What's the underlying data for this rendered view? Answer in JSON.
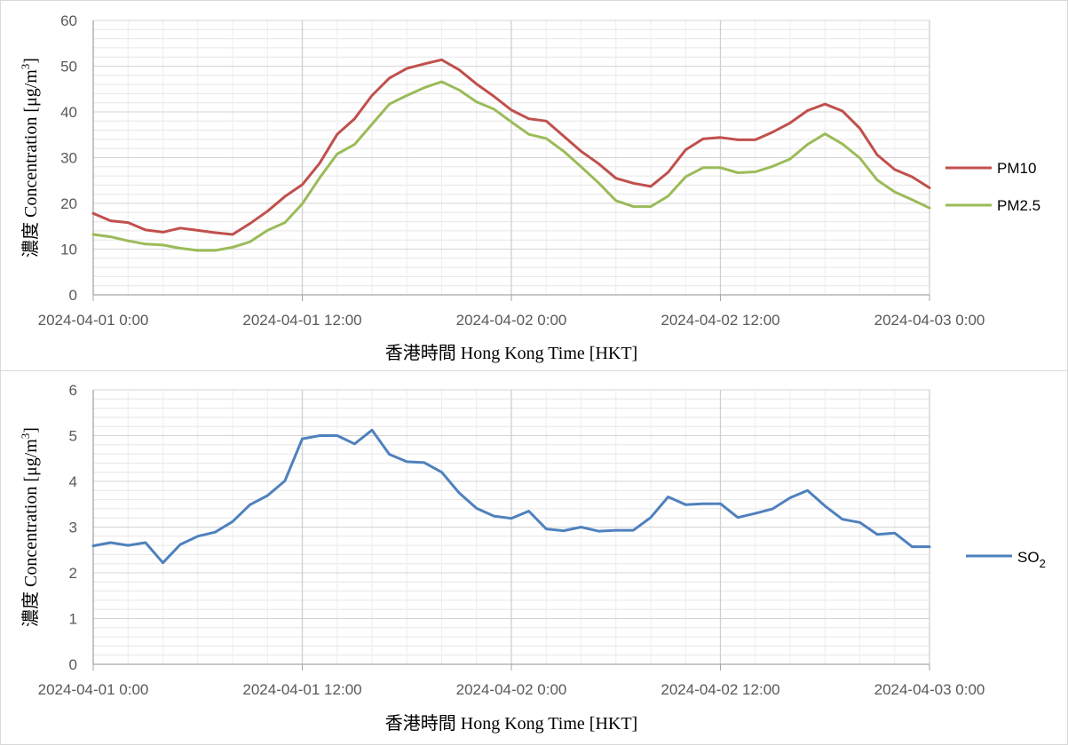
{
  "chart_data": [
    {
      "type": "line",
      "ylabel": "濃度 Concentration [μg/m³]",
      "ylabel_main": "濃度 Concentration [μg/m",
      "ylabel_sup": "3",
      "ylabel_end": "]",
      "xlabel": "香港時間 Hong Kong Time [HKT]",
      "ylim": [
        0,
        60
      ],
      "ytick_step": 10,
      "yticks": [
        "0",
        "10",
        "20",
        "30",
        "40",
        "50",
        "60"
      ],
      "x_range": [
        "2024-04-01 0:00",
        "2024-04-03 0:00"
      ],
      "xticks": [
        "2024-04-01 0:00",
        "2024-04-01 12:00",
        "2024-04-02 0:00",
        "2024-04-02 12:00",
        "2024-04-03 0:00"
      ],
      "x_interval_hours": 1,
      "grid": true,
      "legend_position": "right",
      "series": [
        {
          "name": "PM10",
          "color": "#c0504d",
          "values": [
            17.8,
            16.2,
            15.8,
            14.2,
            13.7,
            14.6,
            14.1,
            13.6,
            13.2,
            15.6,
            18.3,
            21.5,
            24.1,
            28.8,
            35.1,
            38.5,
            43.6,
            47.4,
            49.5,
            50.5,
            51.4,
            49.2,
            46.1,
            43.4,
            40.4,
            38.5,
            38.0,
            34.7,
            31.4,
            28.7,
            25.5,
            24.4,
            23.7,
            26.8,
            31.7,
            34.1,
            34.4,
            33.9,
            33.9,
            35.6,
            37.6,
            40.3,
            41.7,
            40.2,
            36.4,
            30.6,
            27.4,
            25.8,
            23.4
          ]
        },
        {
          "name": "PM2.5",
          "color": "#9bbb59",
          "values": [
            13.2,
            12.7,
            11.8,
            11.1,
            10.9,
            10.2,
            9.7,
            9.7,
            10.4,
            11.6,
            14.1,
            15.8,
            19.9,
            25.6,
            30.8,
            32.9,
            37.3,
            41.7,
            43.6,
            45.3,
            46.6,
            44.8,
            42.2,
            40.6,
            37.8,
            35.1,
            34.2,
            31.4,
            28.0,
            24.5,
            20.6,
            19.3,
            19.3,
            21.6,
            25.8,
            27.8,
            27.8,
            26.7,
            26.9,
            28.1,
            29.7,
            32.9,
            35.2,
            33.0,
            29.9,
            25.1,
            22.5,
            20.8,
            19.0
          ]
        }
      ]
    },
    {
      "type": "line",
      "ylabel": "濃度 Concentration [μg/m³]",
      "ylabel_main": "濃度 Concentration [μg/m",
      "ylabel_sup": "3",
      "ylabel_end": "]",
      "xlabel": "香港時間 Hong Kong Time [HKT]",
      "ylim": [
        0,
        6
      ],
      "ytick_step": 1,
      "yticks": [
        "0",
        "1",
        "2",
        "3",
        "4",
        "5",
        "6"
      ],
      "x_range": [
        "2024-04-01 0:00",
        "2024-04-03 0:00"
      ],
      "xticks": [
        "2024-04-01 0:00",
        "2024-04-01 12:00",
        "2024-04-02 0:00",
        "2024-04-02 12:00",
        "2024-04-03 0:00"
      ],
      "x_interval_hours": 1,
      "grid": true,
      "legend_position": "right",
      "series": [
        {
          "name": "SO₂",
          "name_main": "SO",
          "name_sub": "2",
          "color": "#4f81bd",
          "values": [
            2.59,
            2.66,
            2.6,
            2.66,
            2.22,
            2.62,
            2.8,
            2.89,
            3.12,
            3.49,
            3.69,
            4.01,
            4.93,
            5.0,
            5.0,
            4.82,
            5.12,
            4.59,
            4.43,
            4.41,
            4.2,
            3.75,
            3.41,
            3.24,
            3.19,
            3.35,
            2.96,
            2.92,
            3.0,
            2.91,
            2.93,
            2.93,
            3.21,
            3.66,
            3.49,
            3.51,
            3.51,
            3.21,
            3.3,
            3.4,
            3.64,
            3.8,
            3.46,
            3.17,
            3.1,
            2.84,
            2.87,
            2.57,
            2.57
          ]
        }
      ]
    }
  ]
}
